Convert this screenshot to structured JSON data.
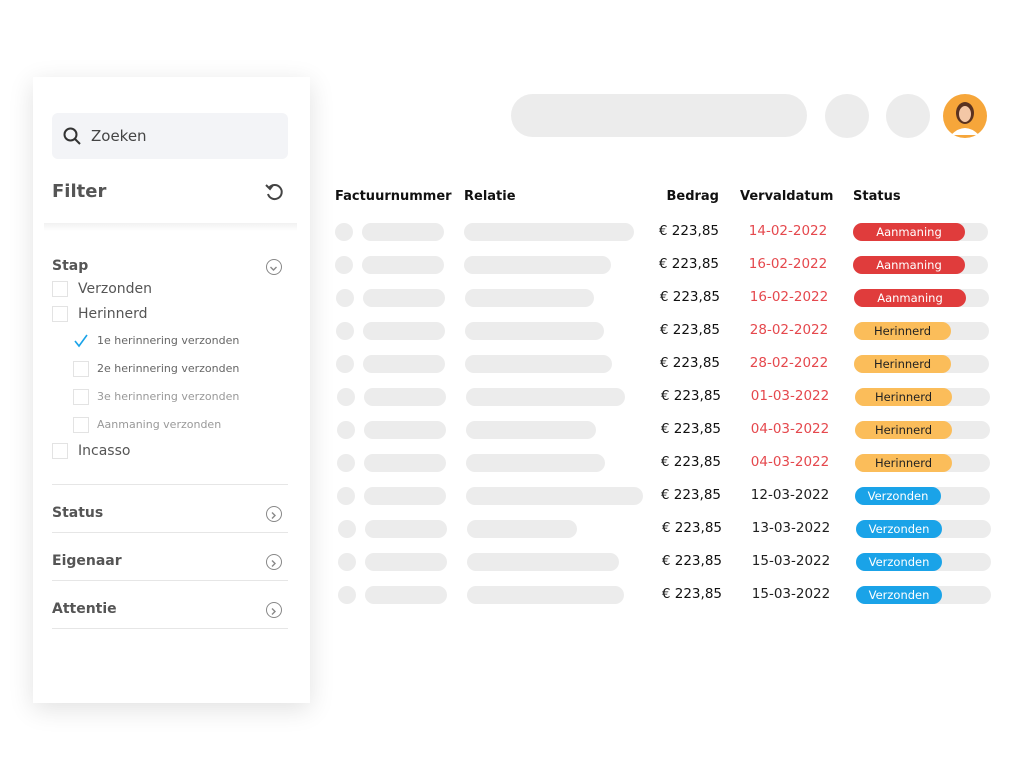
{
  "sidebar": {
    "search": {
      "placeholder": "Zoeken"
    },
    "filter_title": "Filter",
    "sections": [
      {
        "title": "Stap",
        "expanded": true,
        "options": [
          {
            "label": "Verzonden",
            "checked": false
          },
          {
            "label": "Herinnerd",
            "checked": false,
            "suboptions": [
              {
                "label": "1e herinnering verzonden",
                "checked": true
              },
              {
                "label": "2e herinnering verzonden",
                "checked": false
              },
              {
                "label": "3e herinnering verzonden",
                "checked": false
              },
              {
                "label": "Aanmaning verzonden",
                "checked": false
              }
            ]
          },
          {
            "label": "Incasso",
            "checked": false
          }
        ]
      },
      {
        "title": "Status",
        "expanded": false
      },
      {
        "title": "Eigenaar",
        "expanded": false
      },
      {
        "title": "Attentie",
        "expanded": false
      }
    ]
  },
  "table": {
    "headers": [
      "Factuurnummer",
      "Relatie",
      "Bedrag",
      "Vervaldatum",
      "Status"
    ],
    "rows": [
      {
        "amount": "€ 223,85",
        "due_date": "14-02-2022",
        "date_color": "#e5484d",
        "status": "Aanmaning",
        "status_color": "#e03c3c"
      },
      {
        "amount": "€ 223,85",
        "due_date": "16-02-2022",
        "date_color": "#e5484d",
        "status": "Aanmaning",
        "status_color": "#e03c3c"
      },
      {
        "amount": "€ 223,85",
        "due_date": "16-02-2022",
        "date_color": "#e5484d",
        "status": "Aanmaning",
        "status_color": "#e03c3c"
      },
      {
        "amount": "€ 223,85",
        "due_date": "28-02-2022",
        "date_color": "#e5484d",
        "status": "Herinnerd",
        "status_color": "#fbbd5a"
      },
      {
        "amount": "€ 223,85",
        "due_date": "28-02-2022",
        "date_color": "#e5484d",
        "status": "Herinnerd",
        "status_color": "#fbbd5a"
      },
      {
        "amount": "€ 223,85",
        "due_date": "01-03-2022",
        "date_color": "#e5484d",
        "status": "Herinnerd",
        "status_color": "#fbbd5a"
      },
      {
        "amount": "€ 223,85",
        "due_date": "04-03-2022",
        "date_color": "#e5484d",
        "status": "Herinnerd",
        "status_color": "#fbbd5a"
      },
      {
        "amount": "€ 223,85",
        "due_date": "04-03-2022",
        "date_color": "#e5484d",
        "status": "Herinnerd",
        "status_color": "#fbbd5a"
      },
      {
        "amount": "€ 223,85",
        "due_date": "12-03-2022",
        "date_color": "#1f1f1f",
        "status": "Verzonden",
        "status_color": "#1aa3e8"
      },
      {
        "amount": "€ 223,85",
        "due_date": "13-03-2022",
        "date_color": "#1f1f1f",
        "status": "Verzonden",
        "status_color": "#1aa3e8"
      },
      {
        "amount": "€ 223,85",
        "due_date": "15-03-2022",
        "date_color": "#1f1f1f",
        "status": "Verzonden",
        "status_color": "#1aa3e8"
      },
      {
        "amount": "€ 223,85",
        "due_date": "15-03-2022",
        "date_color": "#1f1f1f",
        "status": "Verzonden",
        "status_color": "#1aa3e8"
      }
    ]
  }
}
